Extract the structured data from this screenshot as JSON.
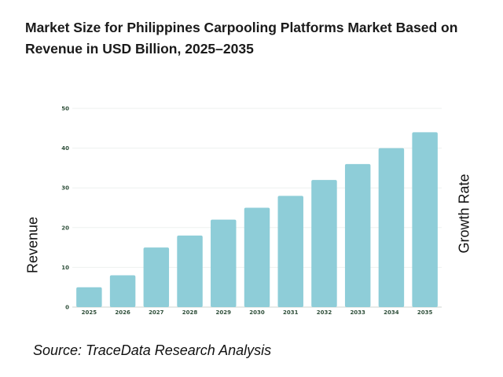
{
  "chart_data": {
    "type": "bar",
    "title": "Market Size for Philippines Carpooling Platforms Market Based on Revenue in USD Billion, 2025–2035",
    "categories": [
      "2025",
      "2026",
      "2027",
      "2028",
      "2029",
      "2030",
      "2031",
      "2032",
      "2033",
      "2034",
      "2035"
    ],
    "values": [
      5,
      8,
      15,
      18,
      22,
      25,
      28,
      32,
      36,
      40,
      44
    ],
    "ylabel": "Revenue",
    "y2label": "Growth Rate",
    "ylim": [
      0,
      50
    ],
    "yticks": [
      "0",
      "10",
      "20",
      "30",
      "40",
      "50"
    ],
    "grid": true,
    "bar_color": "#8ecdd8",
    "source": "Source: TraceData Research Analysis"
  }
}
